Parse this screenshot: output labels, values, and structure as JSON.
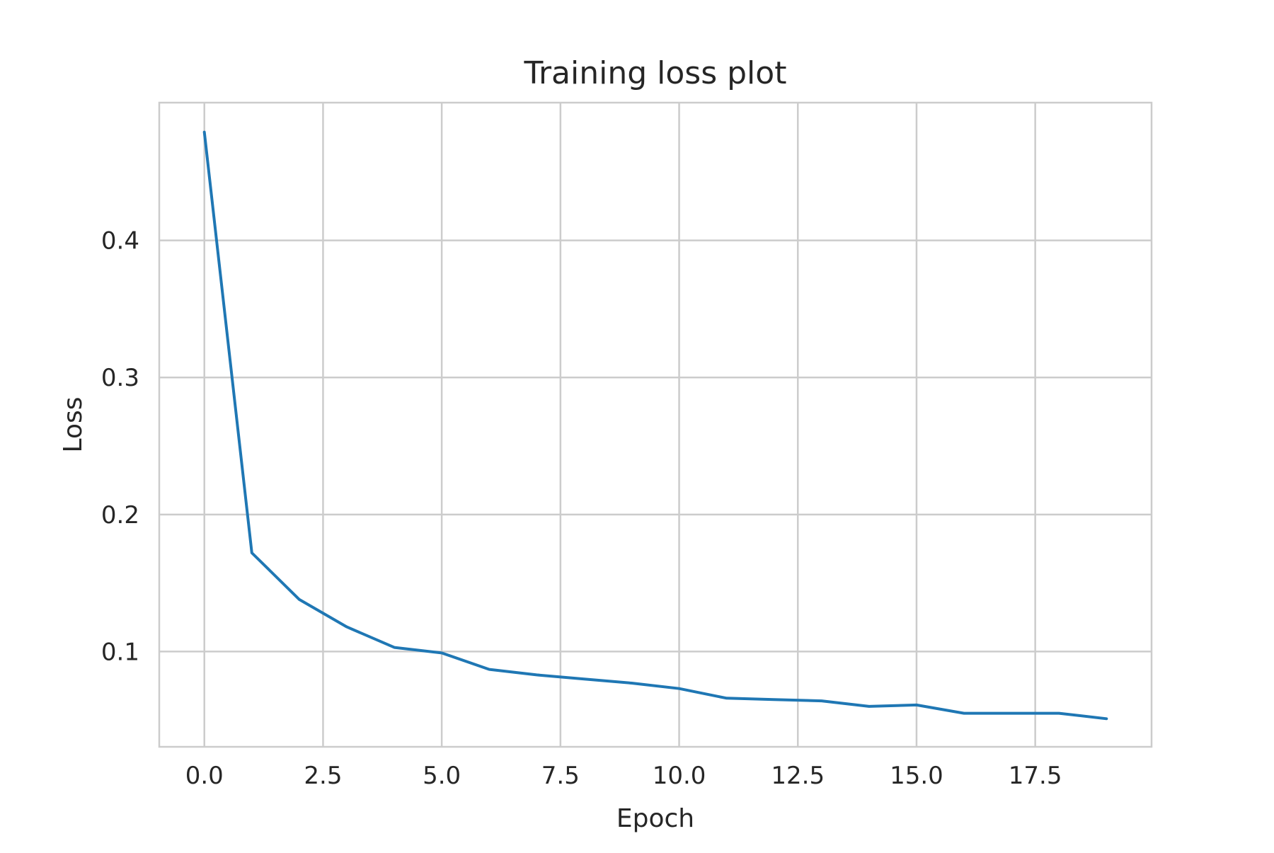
{
  "chart_data": {
    "type": "line",
    "title": "Training loss plot",
    "xlabel": "Epoch",
    "ylabel": "Loss",
    "xlim": [
      -0.95,
      19.95
    ],
    "ylim": [
      0.0305,
      0.5005
    ],
    "grid": true,
    "legend": "none",
    "x_ticks": [
      0,
      2.5,
      5,
      7.5,
      10,
      12.5,
      15,
      17.5
    ],
    "x_tick_labels": [
      "0.0",
      "2.5",
      "5.0",
      "7.5",
      "10.0",
      "12.5",
      "15.0",
      "17.5"
    ],
    "y_ticks": [
      0.1,
      0.2,
      0.3,
      0.4
    ],
    "y_tick_labels": [
      "0.1",
      "0.2",
      "0.3",
      "0.4"
    ],
    "series": [
      {
        "color": "#1f77b4",
        "x": [
          0,
          1,
          2,
          3,
          4,
          5,
          6,
          7,
          8,
          9,
          10,
          11,
          12,
          13,
          14,
          15,
          16,
          17,
          18,
          19
        ],
        "y": [
          0.479,
          0.172,
          0.138,
          0.118,
          0.103,
          0.099,
          0.087,
          0.083,
          0.08,
          0.077,
          0.073,
          0.066,
          0.065,
          0.064,
          0.06,
          0.061,
          0.055,
          0.055,
          0.055,
          0.051
        ]
      }
    ]
  },
  "colors": {
    "grid": "#cccccc",
    "frame": "#cccccc",
    "text": "#262626",
    "line": "#1f77b4"
  }
}
